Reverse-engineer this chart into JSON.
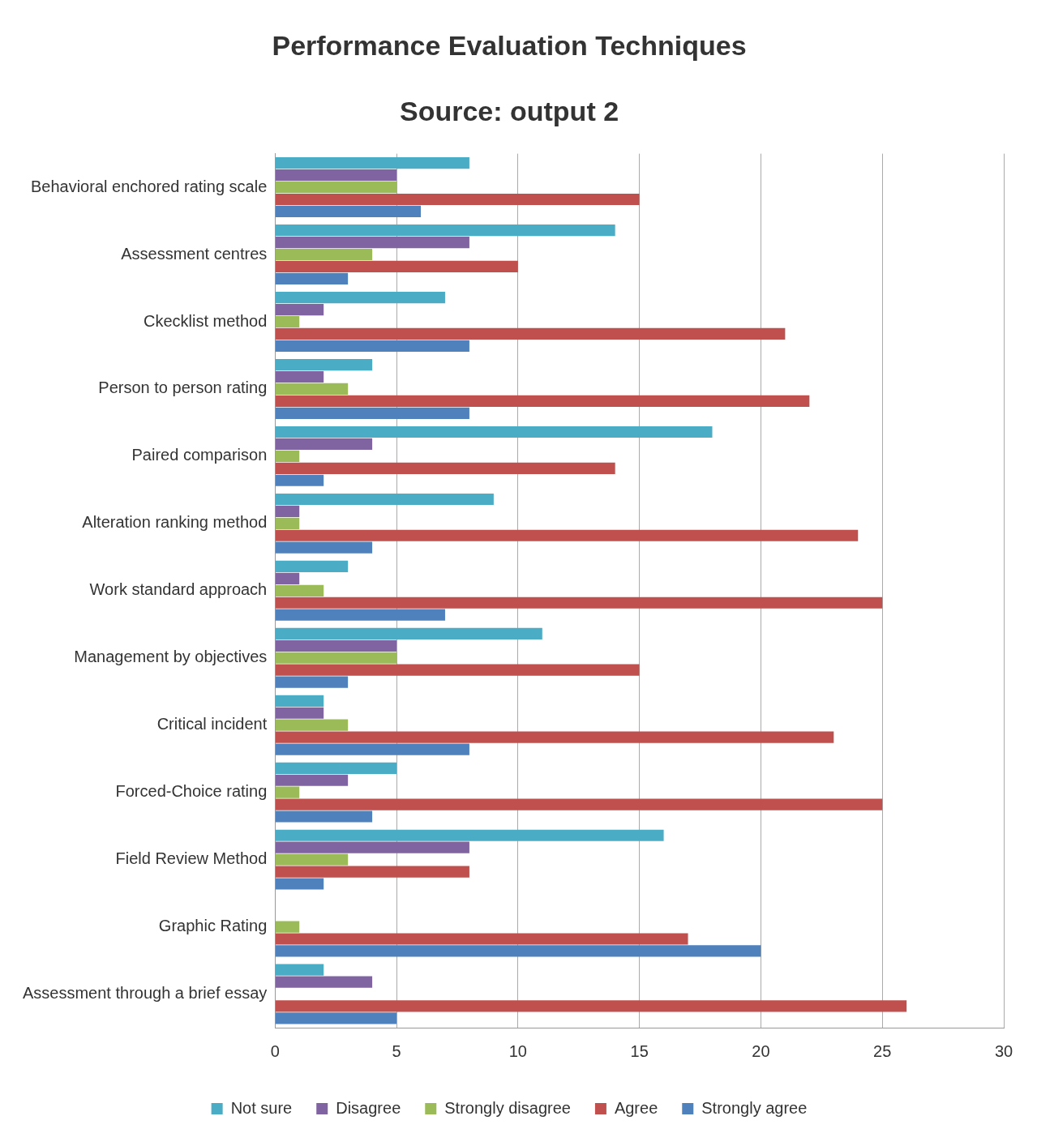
{
  "chart_data": {
    "type": "bar",
    "orientation": "horizontal",
    "title": "Performance Evaluation Techniques",
    "subtitle": "Source: output 2",
    "categories": [
      "Behavioral enchored rating scale",
      "Assessment centres",
      "Ckecklist method",
      "Person to person rating",
      "Paired comparison",
      "Alteration ranking method",
      "Work standard approach",
      "Management by objectives",
      "Critical incident",
      "Forced-Choice rating",
      "Field Review Method",
      "Graphic Rating",
      "Assessment through a brief essay"
    ],
    "series": [
      {
        "name": "Not sure",
        "color": "#4bacc6",
        "values": [
          8,
          14,
          7,
          4,
          18,
          9,
          3,
          11,
          2,
          5,
          16,
          0,
          2
        ]
      },
      {
        "name": "Disagree",
        "color": "#8064a2",
        "values": [
          5,
          8,
          2,
          2,
          4,
          1,
          1,
          5,
          2,
          3,
          8,
          0,
          4
        ]
      },
      {
        "name": "Strongly disagree",
        "color": "#9bbb59",
        "values": [
          5,
          4,
          1,
          3,
          1,
          1,
          2,
          5,
          3,
          1,
          3,
          1,
          0
        ]
      },
      {
        "name": "Agree",
        "color": "#c0504d",
        "values": [
          15,
          10,
          21,
          22,
          14,
          24,
          25,
          15,
          23,
          25,
          8,
          17,
          26
        ]
      },
      {
        "name": "Strongly agree",
        "color": "#4f81bd",
        "values": [
          6,
          3,
          8,
          8,
          2,
          4,
          7,
          3,
          8,
          4,
          2,
          20,
          5
        ]
      }
    ],
    "xlim": [
      0,
      30
    ],
    "xticks": [
      0,
      5,
      10,
      15,
      20,
      25,
      30
    ],
    "grid": "x",
    "legend": "bottom"
  }
}
